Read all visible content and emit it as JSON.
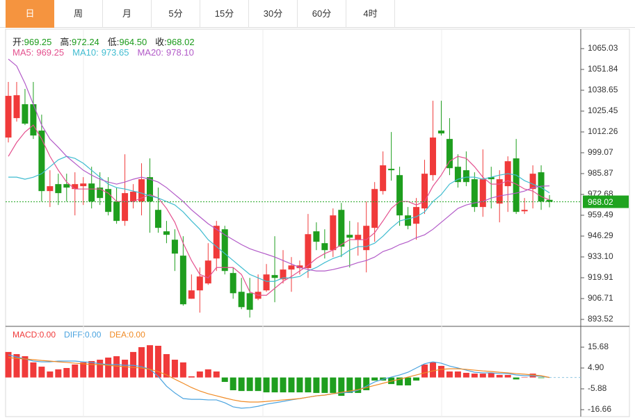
{
  "tabs": {
    "items": [
      "日",
      "周",
      "月",
      "5分",
      "15分",
      "30分",
      "60分",
      "4时"
    ],
    "active": 0
  },
  "chart_data": [
    {
      "type": "candlestick",
      "up_color": "#f03a3a",
      "down_color": "#1e9e1e",
      "ohlc_legend": [
        {
          "label": "开:",
          "value": "969.25"
        },
        {
          "label": "高:",
          "value": "972.24"
        },
        {
          "label": "低:",
          "value": "964.50"
        },
        {
          "label": "收:",
          "value": "968.02"
        }
      ],
      "ohlc_legend_value_color": "#1a9a1a",
      "open": [
        1008.7,
        1021.0,
        1029.8,
        1029.8,
        1013.1,
        974.8,
        979.2,
        979.2,
        976.1,
        977.9,
        979.6,
        977.0,
        976.1,
        968.2,
        955.9,
        968.2,
        968.2,
        983.6,
        962.9,
        949.3,
        944.0,
        933.9,
        906.6,
        911.9,
        916.3,
        932.1,
        950.6,
        922.9,
        911.0,
        910.1,
        906.6,
        911.9,
        921.6,
        918.9,
        925.1,
        926.0,
        926.0,
        949.3,
        941.8,
        937.4,
        962.9,
        947.1,
        944.0,
        937.4,
        951.5,
        974.8,
        988.9,
        984.9,
        959.4,
        954.1,
        963.8,
        984.9,
        1013.1,
        1007.8,
        990.2,
        988.0,
        982.3,
        964.7,
        983.6,
        966.9,
        977.9,
        995.5,
        962.0,
        976.1,
        986.7,
        969.25
      ],
      "high": [
        1043.9,
        1043.9,
        1039.5,
        1043.9,
        1023.2,
        988.0,
        985.8,
        985.8,
        986.7,
        983.6,
        990.2,
        986.7,
        983.6,
        977.0,
        998.1,
        979.2,
        992.4,
        995.5,
        977.0,
        955.9,
        950.6,
        946.2,
        922.0,
        926.4,
        941.8,
        955.9,
        952.8,
        926.4,
        919.8,
        919.8,
        922.0,
        928.6,
        946.2,
        937.4,
        933.0,
        930.8,
        960.3,
        955.0,
        950.6,
        963.8,
        967.3,
        955.9,
        955.0,
        968.2,
        980.5,
        999.9,
        1012.2,
        990.2,
        964.7,
        970.4,
        994.6,
        1032.0,
        1032.0,
        1021.0,
        998.1,
        999.9,
        986.7,
        1001.2,
        990.2,
        988.0,
        996.8,
        1007.8,
        970.4,
        991.1,
        991.1,
        972.24
      ],
      "low": [
        1005.6,
        1018.8,
        1016.6,
        1007.8,
        968.2,
        964.7,
        966.0,
        968.2,
        959.4,
        966.0,
        963.8,
        966.0,
        959.4,
        954.1,
        952.8,
        963.8,
        959.4,
        948.4,
        948.4,
        941.8,
        924.2,
        902.2,
        906.6,
        897.8,
        915.4,
        924.2,
        922.0,
        906.6,
        900.0,
        894.7,
        905.7,
        911.0,
        904.4,
        916.3,
        911.0,
        922.0,
        919.8,
        937.4,
        932.1,
        933.0,
        933.0,
        926.4,
        933.9,
        923.3,
        942.7,
        972.6,
        981.4,
        952.8,
        950.6,
        944.0,
        960.3,
        981.4,
        1010.0,
        984.9,
        977.0,
        977.9,
        961.6,
        958.5,
        963.8,
        955.0,
        961.6,
        960.3,
        960.3,
        963.8,
        962.9,
        964.5
      ],
      "close": [
        1035.1,
        1035.5,
        1017.5,
        1010.0,
        974.8,
        977.9,
        973.5,
        977.0,
        979.2,
        979.6,
        968.2,
        970.4,
        961.6,
        955.9,
        973.5,
        974.4,
        982.3,
        968.2,
        951.5,
        947.1,
        935.2,
        903.1,
        911.9,
        920.7,
        930.8,
        952.8,
        924.2,
        910.1,
        901.3,
        899.6,
        911.0,
        922.0,
        919.8,
        925.1,
        927.7,
        927.7,
        947.5,
        942.7,
        937.4,
        959.4,
        939.6,
        945.3,
        947.1,
        952.8,
        976.1,
        991.1,
        988.0,
        959.4,
        952.8,
        964.7,
        985.8,
        1008.7,
        1011.3,
        989.3,
        980.5,
        980.5,
        964.7,
        982.3,
        982.3,
        982.3,
        993.7,
        961.6,
        962.9,
        985.8,
        968.2,
        968.02
      ],
      "series": [
        {
          "name": "MA5:",
          "legend_value": "969.25",
          "color": "#e4508e",
          "values": [
            996.8,
            1005.6,
            1012.2,
            1016.6,
            1007.8,
            996.8,
            988.0,
            980.5,
            976.1,
            976.1,
            976.1,
            976.1,
            973.5,
            968.2,
            968.2,
            968.2,
            970.4,
            972.6,
            970.4,
            963.8,
            955.0,
            941.8,
            930.8,
            922.0,
            919.8,
            926.4,
            926.4,
            926.4,
            922.0,
            911.0,
            908.8,
            908.8,
            913.2,
            917.6,
            920.7,
            924.2,
            927.7,
            932.1,
            935.2,
            937.4,
            940.9,
            944.0,
            944.0,
            944.0,
            948.4,
            955.9,
            963.8,
            968.2,
            968.2,
            966.0,
            968.2,
            977.9,
            984.9,
            993.7,
            996.8,
            995.5,
            990.2,
            983.6,
            979.2,
            979.2,
            981.4,
            979.2,
            976.1,
            974.8,
            971.3,
            969.25
          ]
        },
        {
          "name": "MA10:",
          "legend_value": "973.65",
          "color": "#3fbcd0",
          "values": [
            983.6,
            983.6,
            982.3,
            983.6,
            985.8,
            990.2,
            994.6,
            996.8,
            995.5,
            992.4,
            988.0,
            983.6,
            979.2,
            977.0,
            976.1,
            974.8,
            973.5,
            971.7,
            970.4,
            968.2,
            966.0,
            961.6,
            955.9,
            950.6,
            944.0,
            939.6,
            935.2,
            930.8,
            926.4,
            922.0,
            919.8,
            917.6,
            917.6,
            919.8,
            919.8,
            920.7,
            924.2,
            926.4,
            929.5,
            932.1,
            933.9,
            937.4,
            939.6,
            939.6,
            941.8,
            946.2,
            951.5,
            955.9,
            957.2,
            958.5,
            961.6,
            968.2,
            972.6,
            979.2,
            982.3,
            983.6,
            983.6,
            982.3,
            983.6,
            984.9,
            985.8,
            984.9,
            981.4,
            979.2,
            977.0,
            973.65
          ]
        },
        {
          "name": "MA20:",
          "legend_value": "978.10",
          "color": "#b25ac8",
          "values": [
            1058.4,
            1054.0,
            1043.0,
            1029.8,
            1016.6,
            1007.8,
            1002.5,
            996.8,
            992.4,
            988.0,
            984.9,
            982.3,
            980.5,
            979.2,
            980.5,
            982.3,
            983.6,
            982.3,
            980.5,
            977.0,
            972.6,
            968.2,
            962.9,
            958.5,
            954.1,
            950.6,
            947.1,
            944.0,
            940.9,
            938.3,
            936.5,
            934.8,
            933.0,
            930.8,
            928.6,
            926.4,
            925.1,
            924.2,
            924.2,
            925.1,
            926.4,
            927.7,
            929.5,
            930.8,
            933.0,
            936.5,
            938.3,
            940.9,
            942.7,
            945.3,
            947.1,
            950.6,
            955.0,
            959.4,
            963.8,
            966.0,
            967.3,
            968.2,
            970.4,
            971.7,
            972.6,
            973.5,
            974.8,
            977.0,
            977.9,
            978.1
          ]
        }
      ],
      "ylim": [
        889.12,
        1077.34
      ],
      "yticks": [
        1065.03,
        1051.84,
        1038.65,
        1025.45,
        1012.26,
        999.07,
        985.87,
        972.68,
        959.49,
        946.29,
        933.1,
        919.91,
        906.71,
        893.52
      ],
      "yticks_labels": [
        "1065.03",
        "1051.84",
        "1038.65",
        "1025.45",
        "1012.26",
        "999.07",
        "985.87",
        "972.68",
        "959.49",
        "946.29",
        "933.10",
        "919.91",
        "906.71",
        "893.52"
      ],
      "last_price": {
        "value": 968.02,
        "label": "968.02"
      },
      "last_price_color": "#1fa31f"
    },
    {
      "type": "macd",
      "series": [
        {
          "name": "MACD:",
          "legend_value": "0.00",
          "color": "#f03a3a",
          "down_color": "#1e9e1e",
          "style": "bar",
          "values": [
            13.2,
            12.1,
            11.0,
            7.8,
            5.6,
            3.1,
            4.2,
            4.9,
            6.7,
            7.8,
            8.5,
            9.2,
            10.3,
            11.0,
            9.2,
            13.2,
            15.7,
            16.7,
            16.4,
            12.1,
            9.2,
            7.8,
            0.6,
            3.1,
            4.2,
            3.1,
            -2.3,
            -6.6,
            -7.0,
            -7.0,
            -7.0,
            -7.7,
            -7.7,
            -7.7,
            -7.7,
            -7.7,
            -7.7,
            -8.0,
            -8.0,
            -8.0,
            -9.5,
            -8.0,
            -8.0,
            -6.6,
            -1.6,
            -1.6,
            -3.4,
            -4.1,
            -4.1,
            -1.6,
            6.7,
            7.8,
            6.0,
            3.1,
            3.1,
            2.4,
            2.0,
            2.0,
            2.4,
            1.3,
            1.3,
            -1.0,
            0.2,
            2.0,
            -0.3,
            0
          ]
        },
        {
          "name": "DIFF:",
          "legend_value": "0.00",
          "color": "#4aa3df",
          "style": "line",
          "values": [
            11.7,
            10.6,
            9.6,
            8.5,
            8.1,
            8.1,
            8.5,
            8.5,
            8.5,
            8.1,
            7.8,
            7.1,
            6.7,
            6.7,
            6.3,
            6.3,
            5.6,
            4.2,
            0.6,
            -4.5,
            -8.0,
            -10.9,
            -11.3,
            -11.3,
            -11.6,
            -11.6,
            -13.1,
            -15.2,
            -15.9,
            -15.6,
            -14.9,
            -13.8,
            -13.1,
            -12.4,
            -11.6,
            -10.9,
            -10.2,
            -9.5,
            -9.1,
            -8.4,
            -8.0,
            -7.7,
            -6.6,
            -4.5,
            -2.3,
            -0.9,
            0.2,
            1.3,
            2.7,
            4.9,
            7.1,
            8.1,
            7.4,
            5.9,
            4.9,
            3.8,
            2.7,
            2.4,
            2.4,
            2.0,
            2.0,
            1.3,
            0.9,
            0.9,
            0.6,
            0
          ]
        },
        {
          "name": "DEA:",
          "legend_value": "0.00",
          "color": "#f08a24",
          "style": "line",
          "values": [
            10.3,
            9.9,
            9.6,
            9.2,
            8.8,
            8.5,
            8.1,
            7.8,
            7.4,
            7.1,
            6.7,
            6.7,
            6.3,
            5.9,
            5.6,
            5.2,
            4.9,
            4.2,
            3.1,
            1.3,
            -0.9,
            -3.0,
            -5.2,
            -7.0,
            -8.4,
            -9.5,
            -10.6,
            -11.6,
            -12.4,
            -12.7,
            -12.7,
            -12.4,
            -12.0,
            -11.6,
            -11.3,
            -10.9,
            -10.2,
            -9.5,
            -9.1,
            -8.4,
            -7.7,
            -7.0,
            -6.3,
            -5.2,
            -4.1,
            -3.0,
            -1.9,
            -0.9,
            0.2,
            1.3,
            2.4,
            3.4,
            4.2,
            4.5,
            4.5,
            4.2,
            3.8,
            3.4,
            3.1,
            2.7,
            2.4,
            2.0,
            1.7,
            1.3,
            0.9,
            0
          ]
        }
      ],
      "ylim": [
        -20.25,
        25.74
      ],
      "yticks": [
        15.68,
        {
          "value": 4.9,
          "label": "4.90"
        },
        -5.88,
        -16.66
      ]
    }
  ]
}
